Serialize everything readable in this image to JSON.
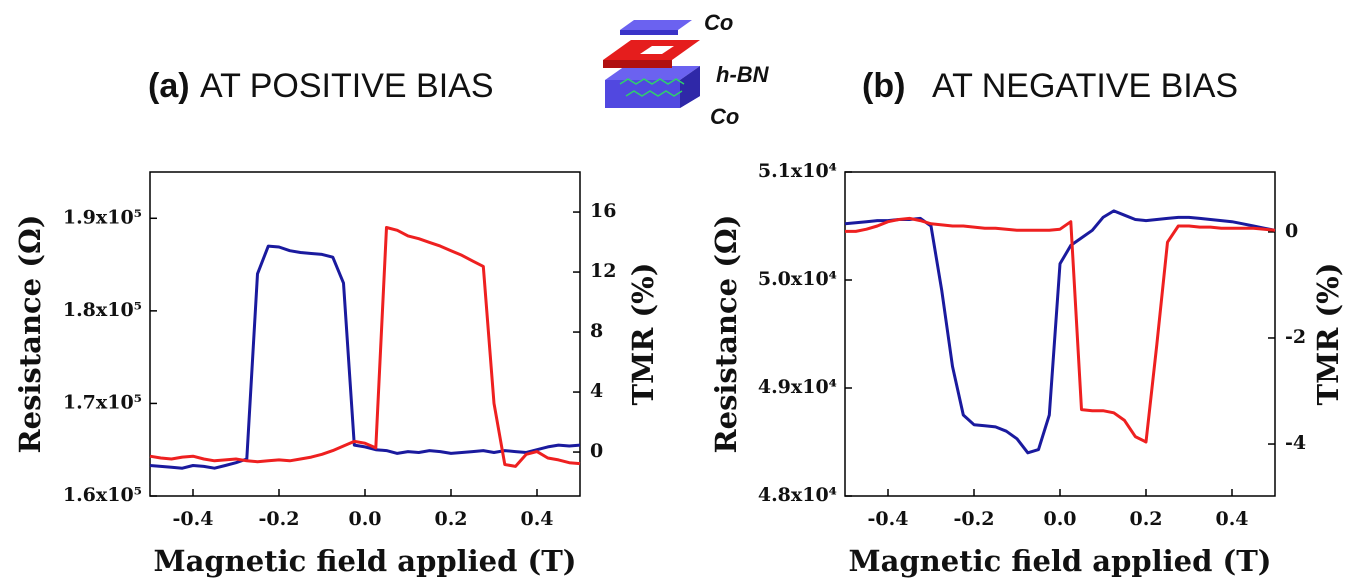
{
  "diagram": {
    "labels": [
      "Co",
      "h-BN",
      "Co"
    ]
  },
  "chart_data": [
    {
      "type": "line",
      "panel": "(a)",
      "title": "AT POSITIVE BIAS",
      "xlabel": "Magnetic field applied (T)",
      "ylabel": "Resistance (Ω)",
      "y2label": "TMR (%)",
      "x": [
        -0.5,
        -0.475,
        -0.45,
        -0.425,
        -0.4,
        -0.375,
        -0.35,
        -0.325,
        -0.3,
        -0.275,
        -0.25,
        -0.225,
        -0.2,
        -0.175,
        -0.15,
        -0.125,
        -0.1,
        -0.075,
        -0.05,
        -0.025,
        0,
        0.025,
        0.05,
        0.075,
        0.1,
        0.125,
        0.15,
        0.175,
        0.2,
        0.225,
        0.25,
        0.275,
        0.3,
        0.325,
        0.35,
        0.375,
        0.4,
        0.425,
        0.45,
        0.475,
        0.5
      ],
      "series": [
        {
          "color": "#1a1a9e",
          "values": [
            163300,
            163200,
            163100,
            163000,
            163300,
            163200,
            163000,
            163300,
            163600,
            164000,
            184000,
            187000,
            186900,
            186500,
            186300,
            186200,
            186100,
            185800,
            183000,
            165500,
            165300,
            165000,
            164900,
            164600,
            164800,
            164700,
            164900,
            164800,
            164600,
            164700,
            164800,
            164900,
            164700,
            164900,
            164800,
            164700,
            165000,
            165300,
            165500,
            165400,
            165500
          ]
        },
        {
          "color": "#ee2020",
          "values": [
            164300,
            164100,
            164000,
            164200,
            164300,
            164000,
            163800,
            163900,
            164000,
            163800,
            163700,
            163800,
            163900,
            163800,
            164000,
            164200,
            164500,
            164900,
            165400,
            165900,
            165700,
            165200,
            189000,
            188700,
            188100,
            187800,
            187400,
            187000,
            186500,
            186000,
            185400,
            184800,
            170000,
            163400,
            163200,
            164500,
            164800,
            164100,
            163900,
            163600,
            163500
          ]
        }
      ],
      "xlim": [
        -0.5,
        0.5
      ],
      "xticks": [
        -0.4,
        -0.2,
        {
          "value": 0,
          "label": "0.0"
        },
        0.2,
        0.4
      ],
      "ylim": [
        160000,
        195000
      ],
      "yticks": [
        {
          "value": 160000,
          "label": "1.6x10⁵"
        },
        {
          "value": 170000,
          "label": "1.7x10⁵"
        },
        {
          "value": 180000,
          "label": "1.8x10⁵"
        },
        {
          "value": 190000,
          "label": "1.9x10⁵"
        }
      ],
      "y2lim": [
        -2.93,
        18.67
      ],
      "y2ticks": [
        0,
        4,
        8,
        12,
        16
      ]
    },
    {
      "type": "line",
      "panel": "(b)",
      "title": "AT NEGATIVE BIAS",
      "xlabel": "Magnetic field applied (T)",
      "ylabel": "Resistance (Ω)",
      "y2label": "TMR (%)",
      "x": [
        -0.5,
        -0.475,
        -0.45,
        -0.425,
        -0.4,
        -0.375,
        -0.35,
        -0.325,
        -0.3,
        -0.275,
        -0.25,
        -0.225,
        -0.2,
        -0.175,
        -0.15,
        -0.125,
        -0.1,
        -0.075,
        -0.05,
        -0.025,
        0,
        0.025,
        0.05,
        0.075,
        0.1,
        0.125,
        0.15,
        0.175,
        0.2,
        0.225,
        0.25,
        0.275,
        0.3,
        0.325,
        0.35,
        0.375,
        0.4,
        0.425,
        0.45,
        0.475,
        0.5
      ],
      "series": [
        {
          "color": "#1a1a9e",
          "values": [
            50520,
            50530,
            50540,
            50550,
            50550,
            50560,
            50560,
            50570,
            50500,
            49900,
            49200,
            48750,
            48660,
            48650,
            48640,
            48600,
            48530,
            48400,
            48430,
            48750,
            50150,
            50320,
            50390,
            50460,
            50580,
            50640,
            50600,
            50560,
            50550,
            50560,
            50570,
            50580,
            50580,
            50570,
            50560,
            50550,
            50540,
            50520,
            50500,
            50480,
            50460
          ]
        },
        {
          "color": "#ee2020",
          "values": [
            50450,
            50450,
            50470,
            50500,
            50540,
            50560,
            50570,
            50550,
            50520,
            50510,
            50500,
            50500,
            50490,
            50480,
            50480,
            50470,
            50460,
            50460,
            50460,
            50460,
            50470,
            50540,
            48800,
            48790,
            48790,
            48770,
            48700,
            48550,
            48500,
            49400,
            50350,
            50500,
            50500,
            50490,
            50490,
            50480,
            50480,
            50480,
            50480,
            50470,
            50460
          ]
        }
      ],
      "xlim": [
        -0.5,
        0.5
      ],
      "xticks": [
        -0.4,
        -0.2,
        {
          "value": 0,
          "label": "0.0"
        },
        0.2,
        0.4
      ],
      "ylim": [
        48000,
        51000
      ],
      "yticks": [
        {
          "value": 48000,
          "label": "4.8x10⁴"
        },
        {
          "value": 49000,
          "label": "4.9x10⁴"
        },
        {
          "value": 50000,
          "label": "5.0x10⁴"
        },
        {
          "value": 51000,
          "label": "5.1x10⁴"
        }
      ],
      "y2lim": [
        -4.98,
        1.13
      ],
      "y2ticks": [
        -4,
        -2,
        0
      ]
    }
  ]
}
